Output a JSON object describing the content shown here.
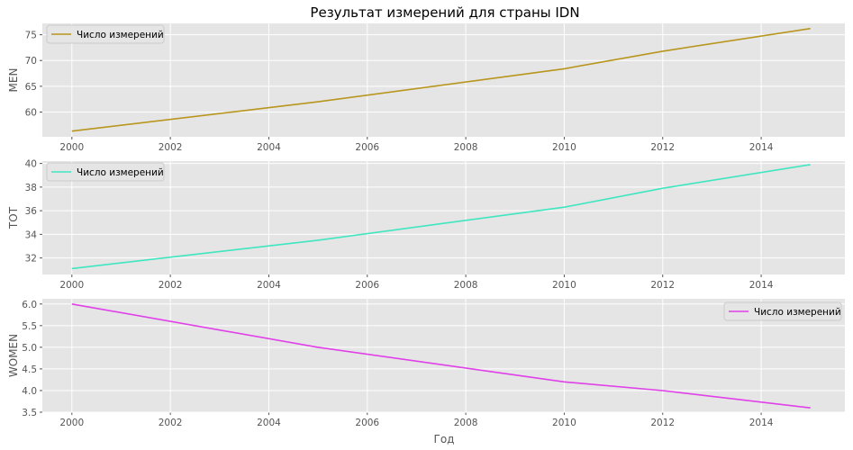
{
  "title": "Результат измерений для страны IDN",
  "xlabel": "Год",
  "chart_data": [
    {
      "type": "line",
      "ylabel": "MEN",
      "xlim": [
        1999.4,
        2015.7
      ],
      "ylim": [
        55.2,
        77.2
      ],
      "xticks": [
        2000,
        2002,
        2004,
        2006,
        2008,
        2010,
        2012,
        2014
      ],
      "yticks": [
        60,
        65,
        70,
        75
      ],
      "legend_position": "top-left",
      "grid": true,
      "series": [
        {
          "name": "Число измерений",
          "color": "#b8961e",
          "x": [
            2000,
            2005,
            2010,
            2012,
            2015
          ],
          "y": [
            56.3,
            62.0,
            68.4,
            71.8,
            76.2
          ]
        }
      ]
    },
    {
      "type": "line",
      "ylabel": "TOT",
      "xlim": [
        1999.4,
        2015.7
      ],
      "ylim": [
        30.6,
        40.2
      ],
      "xticks": [
        2000,
        2002,
        2004,
        2006,
        2008,
        2010,
        2012,
        2014
      ],
      "yticks": [
        32,
        34,
        36,
        38,
        40
      ],
      "legend_position": "top-left",
      "grid": true,
      "series": [
        {
          "name": "Число измерений",
          "color": "#3fe6c0",
          "x": [
            2000,
            2005,
            2010,
            2012,
            2015
          ],
          "y": [
            31.1,
            33.5,
            36.3,
            37.9,
            39.9
          ]
        }
      ]
    },
    {
      "type": "line",
      "ylabel": "WOMEN",
      "xlim": [
        1999.4,
        2015.7
      ],
      "ylim": [
        3.5,
        6.12
      ],
      "xticks": [
        2000,
        2002,
        2004,
        2006,
        2008,
        2010,
        2012,
        2014
      ],
      "yticks": [
        3.5,
        4.0,
        4.5,
        5.0,
        5.5,
        6.0
      ],
      "ytick_labels": [
        "3.5",
        "4.0",
        "4.5",
        "5.0",
        "5.5",
        "6.0"
      ],
      "legend_position": "top-right",
      "grid": true,
      "series": [
        {
          "name": "Число измерений",
          "color": "#e040e8",
          "x": [
            2000,
            2005,
            2010,
            2012,
            2015
          ],
          "y": [
            6.0,
            5.0,
            4.2,
            4.0,
            3.6
          ]
        }
      ]
    }
  ]
}
